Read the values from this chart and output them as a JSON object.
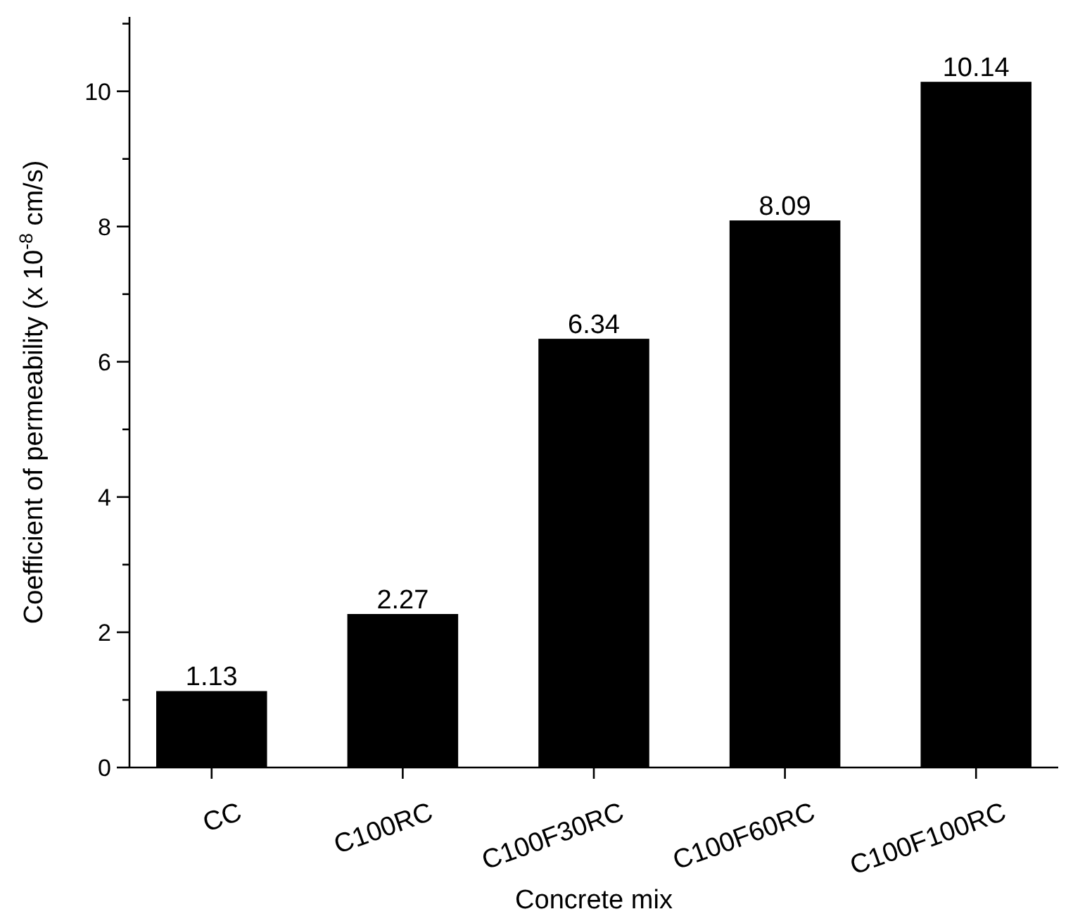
{
  "chart_data": {
    "type": "bar",
    "xlabel": "Concrete mix",
    "ylabel": "Coefficient of permeability (x 10$^{-8}$ cm/s)",
    "categories": [
      "CC",
      "C100RC",
      "C100F30RC",
      "C100F60RC",
      "C100F100RC"
    ],
    "values": [
      1.13,
      2.27,
      6.34,
      8.09,
      10.14
    ],
    "color": "#000000",
    "data_labels": true,
    "ylim": [
      0,
      11.1
    ],
    "yticks": [
      0,
      {
        "value": 1,
        "label": null
      },
      2,
      {
        "value": 3,
        "label": null
      },
      4,
      {
        "value": 5,
        "label": null
      },
      6,
      {
        "value": 7,
        "label": null
      },
      8,
      {
        "value": 9,
        "label": null
      },
      10,
      {
        "value": 11,
        "label": null
      }
    ],
    "grid": false
  }
}
